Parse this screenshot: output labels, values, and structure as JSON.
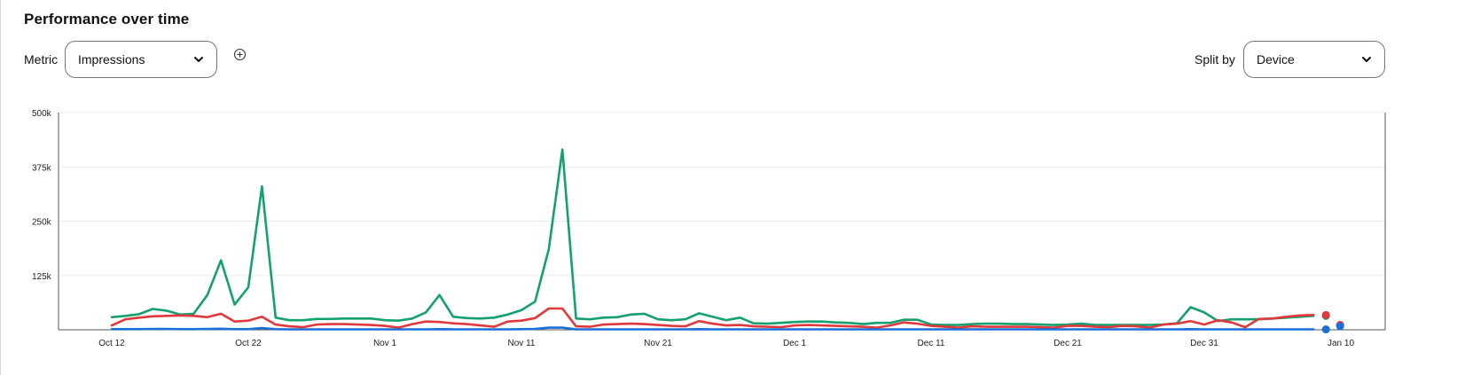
{
  "header": {
    "title": "Performance over time"
  },
  "controls": {
    "metric_label": "Metric",
    "metric_value": "Impressions",
    "split_label": "Split by",
    "split_value": "Device"
  },
  "icons": {
    "dropdown": "chevron-down-icon",
    "add_metric": "plus-circle-icon"
  },
  "chart_data": {
    "type": "line",
    "title": "",
    "xlabel": "",
    "ylabel": "",
    "x_start": "Oct 12",
    "x_ticks": [
      "Oct 12",
      "Oct 22",
      "Nov 1",
      "Nov 11",
      "Nov 21",
      "Dec 1",
      "Dec 11",
      "Dec 21",
      "Dec 31",
      "Jan 10"
    ],
    "y_ticks": [
      {
        "value": 125000,
        "label": "125k"
      },
      {
        "value": 250000,
        "label": "250k"
      },
      {
        "value": 375000,
        "label": "375k"
      },
      {
        "value": 500000,
        "label": "500k"
      }
    ],
    "ylim": [
      0,
      500000
    ],
    "grid": true,
    "series": [
      {
        "color": "#14a06f",
        "values": [
          29000,
          32000,
          36000,
          48000,
          44000,
          35000,
          37000,
          80000,
          160000,
          58000,
          98000,
          330000,
          28000,
          22000,
          22000,
          25000,
          25000,
          26000,
          26000,
          26000,
          22000,
          21000,
          26000,
          40000,
          80000,
          30000,
          27000,
          26000,
          28000,
          35000,
          45000,
          65000,
          185000,
          415000,
          26000,
          24000,
          28000,
          29000,
          35000,
          37000,
          24000,
          22000,
          24000,
          38000,
          30000,
          22000,
          28000,
          15000,
          14000,
          16000,
          18000,
          19000,
          19000,
          17000,
          16000,
          13000,
          16000,
          16000,
          23000,
          23000,
          12000,
          11000,
          11000,
          13000,
          14000,
          14000,
          13000,
          13000,
          12000,
          11000,
          12000,
          14000,
          11000,
          11000,
          11000,
          11000,
          11000,
          12000,
          15000,
          52000,
          40000,
          20000,
          24000,
          24000,
          24000,
          26000,
          28000,
          30000,
          32000
        ]
      },
      {
        "color": "#e0393b",
        "values": [
          10000,
          24000,
          28000,
          31000,
          32000,
          33000,
          32000,
          29000,
          37000,
          19000,
          21000,
          30000,
          12000,
          8000,
          6000,
          12000,
          13000,
          13000,
          12000,
          11000,
          9000,
          5000,
          13000,
          19000,
          18000,
          15000,
          13000,
          10000,
          7000,
          19000,
          21000,
          27000,
          49000,
          49000,
          8000,
          7000,
          12000,
          13000,
          14000,
          13000,
          11000,
          9000,
          8000,
          20000,
          14000,
          10000,
          11000,
          8000,
          7000,
          6000,
          10000,
          11000,
          10000,
          9000,
          8000,
          7000,
          5000,
          10000,
          17000,
          14000,
          9000,
          7000,
          5000,
          8000,
          7000,
          7000,
          7000,
          7000,
          6000,
          5000,
          9000,
          9000,
          7000,
          6000,
          9000,
          8000,
          5000,
          12000,
          14000,
          20000,
          12000,
          22000,
          17000,
          6000,
          25000,
          26000,
          30000,
          33000,
          34000
        ]
      },
      {
        "color": "#1b6fdb",
        "values": [
          1500,
          1500,
          1500,
          2000,
          2000,
          1500,
          1500,
          2000,
          2500,
          1500,
          1500,
          4000,
          1500,
          1000,
          1000,
          1000,
          1000,
          1000,
          1000,
          1000,
          1000,
          1000,
          1000,
          1000,
          1500,
          1000,
          1000,
          1000,
          1000,
          1000,
          1500,
          2000,
          5000,
          5000,
          1000,
          1000,
          1000,
          1000,
          1000,
          1000,
          1000,
          1000,
          1000,
          1500,
          1000,
          1000,
          1000,
          1000,
          1000,
          1000,
          1000,
          1000,
          1000,
          1000,
          1000,
          1000,
          1000,
          1000,
          1000,
          1000,
          1000,
          1000,
          1000,
          1000,
          1000,
          1000,
          1000,
          1000,
          1000,
          1000,
          1000,
          1000,
          1000,
          1000,
          1000,
          1000,
          1000,
          1000,
          1000,
          1500,
          1000,
          1000,
          1000,
          1000,
          1000,
          1000,
          1000,
          1000,
          1000
        ]
      }
    ]
  }
}
